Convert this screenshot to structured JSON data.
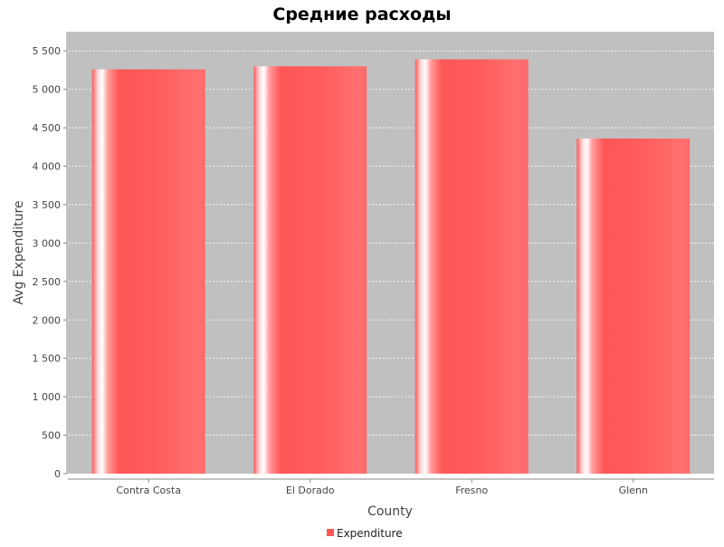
{
  "chart_data": {
    "type": "bar",
    "title": "Средние расходы",
    "xlabel": "County",
    "ylabel": "Avg Expenditure",
    "categories": [
      "Contra Costa",
      "El Dorado",
      "Fresno",
      "Glenn"
    ],
    "series": [
      {
        "name": "Expenditure",
        "values": [
          5260,
          5300,
          5390,
          4360
        ]
      }
    ],
    "ylim": [
      0,
      5750
    ],
    "yticks": [
      0,
      500,
      1000,
      1500,
      2000,
      2500,
      3000,
      3500,
      4000,
      4500,
      5000,
      5500
    ],
    "ytick_labels": [
      "0",
      "500",
      "1 000",
      "1 500",
      "2 000",
      "2 500",
      "3 000",
      "3 500",
      "4 000",
      "4 500",
      "5 000",
      "5 500"
    ],
    "grid": true,
    "legend_position": "bottom",
    "colors": {
      "bar": "#ff5555",
      "plot_background": "#c0c0c0",
      "gridline": "#ffffff"
    }
  }
}
